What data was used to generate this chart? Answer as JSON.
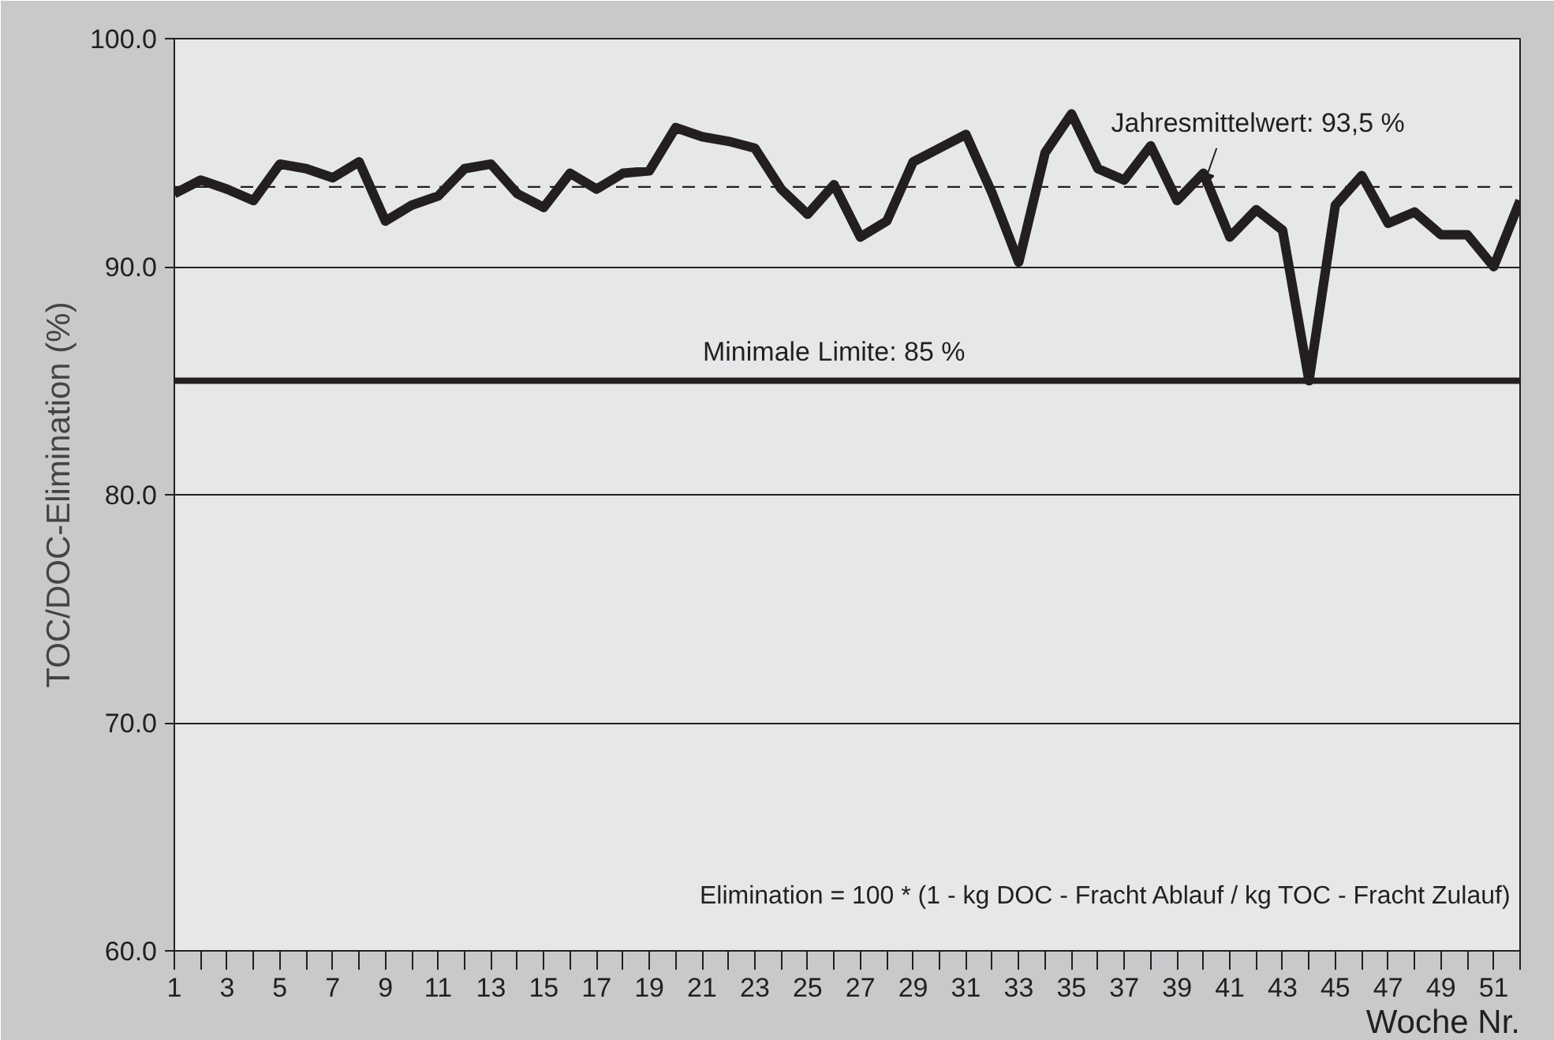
{
  "chart_data": {
    "type": "line",
    "xlabel": "Woche Nr.",
    "ylabel": "TOC/DOC-Elimination (%)",
    "x": [
      1,
      2,
      3,
      4,
      5,
      6,
      7,
      8,
      9,
      10,
      11,
      12,
      13,
      14,
      15,
      16,
      17,
      18,
      19,
      20,
      21,
      22,
      23,
      24,
      25,
      26,
      27,
      28,
      29,
      30,
      31,
      32,
      33,
      34,
      35,
      36,
      37,
      38,
      39,
      40,
      41,
      42,
      43,
      44,
      45,
      46,
      47,
      48,
      49,
      50,
      51,
      52
    ],
    "series": [
      {
        "color": "#231f20",
        "values": [
          93.2,
          93.8,
          93.4,
          92.9,
          94.5,
          94.3,
          93.9,
          94.6,
          92.0,
          92.7,
          93.1,
          94.3,
          94.5,
          93.2,
          92.6,
          94.1,
          93.4,
          94.1,
          94.2,
          96.1,
          95.7,
          95.5,
          95.2,
          93.4,
          92.3,
          93.6,
          91.3,
          92.0,
          94.6,
          95.2,
          95.8,
          93.2,
          90.2,
          95.0,
          96.7,
          94.3,
          93.8,
          95.3,
          92.9,
          94.1,
          91.3,
          92.5,
          91.6,
          85.0,
          92.7,
          94.0,
          91.9,
          92.4,
          91.4,
          91.4,
          90.0,
          92.9
        ]
      }
    ],
    "xlim": [
      1,
      52
    ],
    "xticks": [
      1,
      {
        "value": 2,
        "label": null
      },
      3,
      {
        "value": 4,
        "label": null
      },
      5,
      {
        "value": 6,
        "label": null
      },
      7,
      {
        "value": 8,
        "label": null
      },
      9,
      {
        "value": 10,
        "label": null
      },
      11,
      {
        "value": 12,
        "label": null
      },
      13,
      {
        "value": 14,
        "label": null
      },
      15,
      {
        "value": 16,
        "label": null
      },
      17,
      {
        "value": 18,
        "label": null
      },
      19,
      {
        "value": 20,
        "label": null
      },
      21,
      {
        "value": 22,
        "label": null
      },
      23,
      {
        "value": 24,
        "label": null
      },
      25,
      {
        "value": 26,
        "label": null
      },
      27,
      {
        "value": 28,
        "label": null
      },
      29,
      {
        "value": 30,
        "label": null
      },
      31,
      {
        "value": 32,
        "label": null
      },
      33,
      {
        "value": 34,
        "label": null
      },
      35,
      {
        "value": 36,
        "label": null
      },
      37,
      {
        "value": 38,
        "label": null
      },
      39,
      {
        "value": 40,
        "label": null
      },
      41,
      {
        "value": 42,
        "label": null
      },
      43,
      {
        "value": 44,
        "label": null
      },
      45,
      {
        "value": 46,
        "label": null
      },
      47,
      {
        "value": 48,
        "label": null
      },
      49,
      {
        "value": 50,
        "label": null
      },
      51,
      {
        "value": 52,
        "label": null
      }
    ],
    "ylim": [
      60,
      100
    ],
    "yticks": [
      {
        "value": 60,
        "label": "60.0"
      },
      {
        "value": 70,
        "label": "70.0"
      },
      {
        "value": 80,
        "label": "80.0"
      },
      {
        "value": 90,
        "label": "90.0"
      },
      {
        "value": 100,
        "label": "100.0"
      }
    ],
    "grid": "y",
    "marker": "none",
    "line_style": "solid",
    "ref_lines": [
      {
        "axis": "y",
        "value": 93.5,
        "label": "Jahresmittelwert: 93,5 %",
        "color": "#231f20",
        "line_style": "dashed"
      },
      {
        "axis": "y",
        "value": 85,
        "label": "Minimale Limite: 85 %",
        "color": "#231f20",
        "line_style": "solid"
      }
    ],
    "annotations": [
      "Elimination = 100 * (1 - kg DOC - Fracht Ablauf / kg TOC - Fracht Zulauf)"
    ]
  }
}
